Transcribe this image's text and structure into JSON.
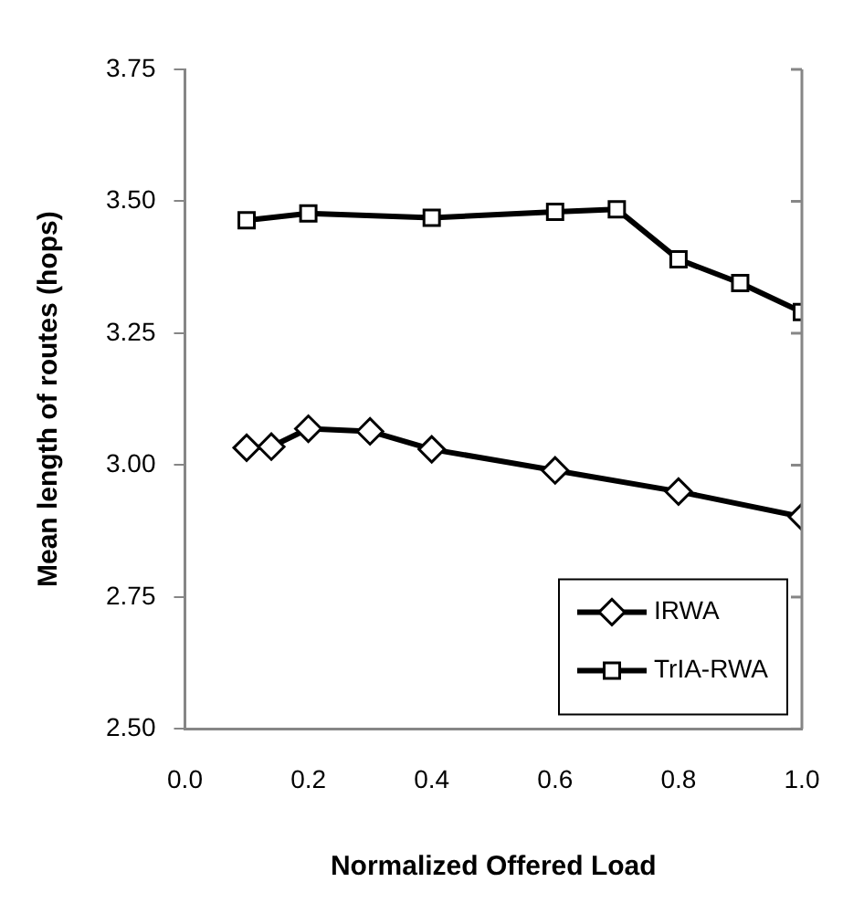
{
  "chart_data": {
    "type": "line",
    "xlabel": "Normalized Offered Load",
    "ylabel": "Mean length of routes (hops)",
    "xlim": [
      0,
      1
    ],
    "xticks": [
      {
        "value": 0,
        "label": "0.0"
      },
      0.2,
      0.4,
      0.6,
      0.8,
      {
        "value": 1,
        "label": "1.0"
      }
    ],
    "ylim": [
      2.5,
      3.75
    ],
    "yticks": [
      {
        "value": 2.5,
        "label": "2.50"
      },
      {
        "value": 2.75,
        "label": "2.75"
      },
      {
        "value": 3,
        "label": "3.00"
      },
      {
        "value": 3.25,
        "label": "3.25"
      },
      {
        "value": 3.5,
        "label": "3.50"
      },
      {
        "value": 3.75,
        "label": "3.75"
      }
    ],
    "grid": false,
    "legend": "bottom right",
    "line_style": "solid",
    "series": [
      {
        "name": "IRWA",
        "color": "#000000",
        "marker": "diamond",
        "x": [
          0.1,
          0.14,
          0.2,
          0.3,
          0.4,
          0.6,
          0.8,
          1.0
        ],
        "values": [
          3.033,
          3.035,
          3.069,
          3.064,
          3.03,
          2.99,
          2.95,
          2.902
        ]
      },
      {
        "name": "TrIA-RWA",
        "color": "#000000",
        "marker": "square",
        "x": [
          0.1,
          0.2,
          0.4,
          0.6,
          0.7,
          0.8,
          0.9,
          1.0
        ],
        "values": [
          3.464,
          3.477,
          3.469,
          3.48,
          3.485,
          3.39,
          3.345,
          3.29
        ]
      }
    ]
  }
}
